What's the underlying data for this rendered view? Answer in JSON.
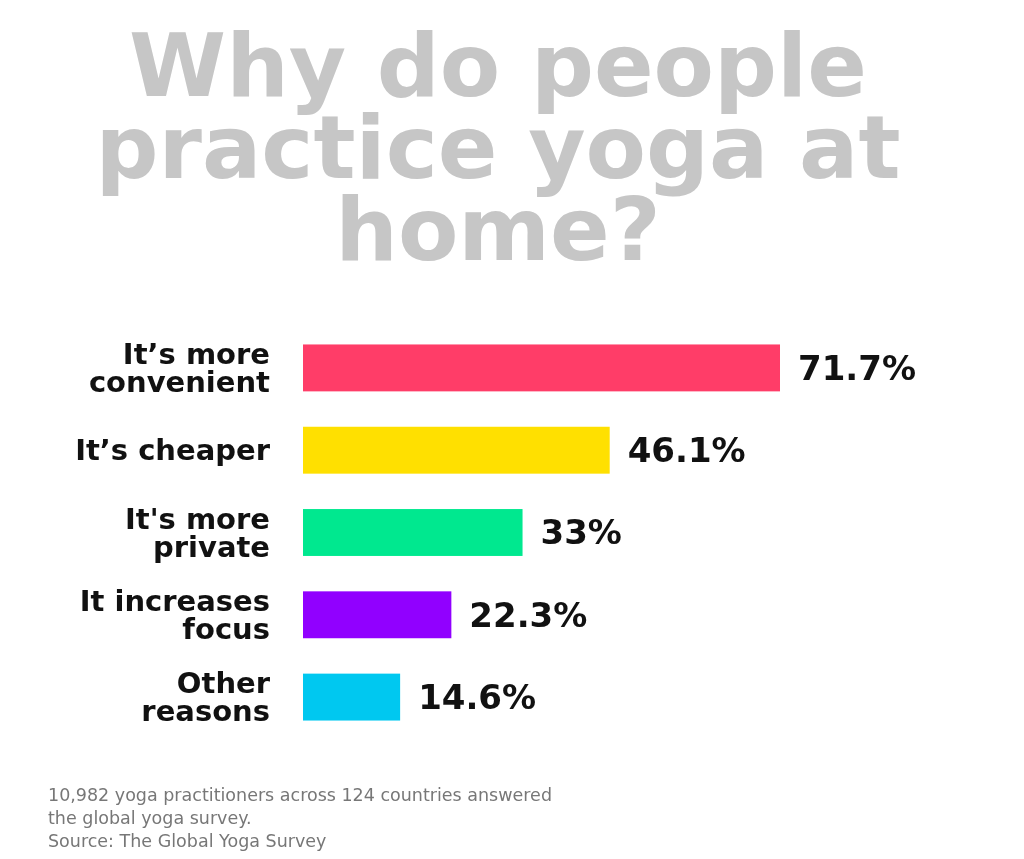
{
  "chart_data": {
    "type": "bar",
    "orientation": "horizontal",
    "title": "Why do people practice yoga at home?",
    "categories": [
      "It’s more convenient",
      "It’s cheaper",
      "It's more private",
      "It increases focus",
      "Other reasons"
    ],
    "values": [
      71.7,
      46.1,
      33,
      22.3,
      14.6
    ],
    "colors": [
      "#ff3d68",
      "#ffe000",
      "#00e88f",
      "#9100ff",
      "#00c8f0"
    ],
    "value_labels": [
      "71.7%",
      "46.1%",
      "33%",
      "22.3%",
      "14.6%"
    ],
    "annotations": [
      "10,982 yoga practitioners across 124 countries answered the global yoga survey.",
      "Source: The Global Yoga Survey"
    ]
  }
}
